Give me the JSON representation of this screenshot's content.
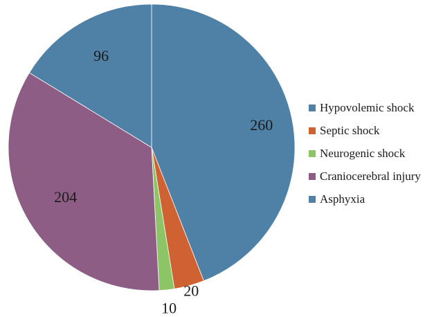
{
  "chart_data": {
    "type": "pie",
    "title": "",
    "categories": [
      "Hypovolemic shock",
      "Septic shock",
      "Neurogenic shock",
      "Craniocerebral injury",
      "Asphyxia"
    ],
    "values": [
      260,
      20,
      10,
      204,
      96
    ],
    "data_labels": [
      "260",
      "20",
      "10",
      "204",
      "96"
    ],
    "colors": [
      "#4f81a6",
      "#cf6233",
      "#8dc466",
      "#8e5d86",
      "#4f81a6"
    ],
    "start_angle_deg": 0,
    "direction": "clockwise",
    "legend_position": "right"
  }
}
